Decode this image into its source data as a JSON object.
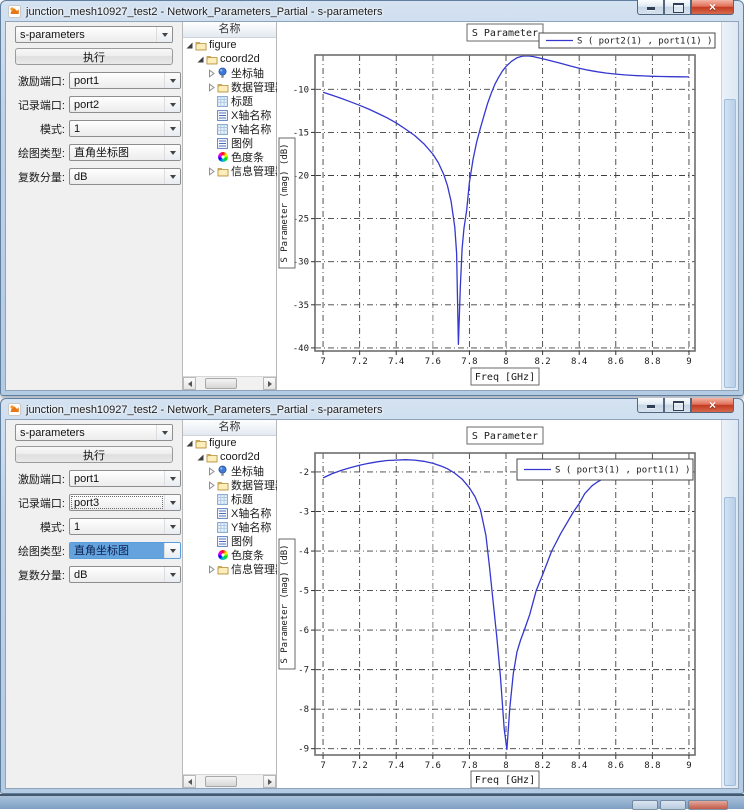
{
  "windows": [
    {
      "title": "junction_mesh10927_test2 - Network_Parameters_Partial - s-parameters",
      "panel": {
        "analysis_type": "s-parameters",
        "run_label": "执行",
        "fields": [
          {
            "label": "激励端口:",
            "value": "port1",
            "state": "normal"
          },
          {
            "label": "记录端口:",
            "value": "port2",
            "state": "normal"
          },
          {
            "label": "模式:",
            "value": "1",
            "state": "normal"
          },
          {
            "label": "绘图类型:",
            "value": "直角坐标图",
            "state": "normal"
          },
          {
            "label": "复数分量:",
            "value": "dB",
            "state": "normal"
          }
        ]
      },
      "tree": {
        "header": "名称",
        "items": [
          {
            "label": "figure",
            "icon": "folder",
            "expander": "expanded",
            "level": 0
          },
          {
            "label": "coord2d",
            "icon": "folder",
            "expander": "expanded",
            "level": 1
          },
          {
            "label": "坐标轴",
            "icon": "axes",
            "expander": "collapsed",
            "level": 2
          },
          {
            "label": "数据管理器",
            "icon": "folder",
            "expander": "collapsed",
            "level": 2
          },
          {
            "label": "标题",
            "icon": "table",
            "expander": "none",
            "level": 2
          },
          {
            "label": "X轴名称",
            "icon": "list",
            "expander": "none",
            "level": 2
          },
          {
            "label": "Y轴名称",
            "icon": "table",
            "expander": "none",
            "level": 2
          },
          {
            "label": "图例",
            "icon": "list",
            "expander": "none",
            "level": 2
          },
          {
            "label": "色度条",
            "icon": "colorwheel",
            "expander": "none",
            "level": 2
          },
          {
            "label": "信息管理器",
            "icon": "folder",
            "expander": "collapsed",
            "level": 2
          }
        ]
      }
    },
    {
      "title": "junction_mesh10927_test2 - Network_Parameters_Partial - s-parameters",
      "panel": {
        "analysis_type": "s-parameters",
        "run_label": "执行",
        "fields": [
          {
            "label": "激励端口:",
            "value": "port1",
            "state": "normal"
          },
          {
            "label": "记录端口:",
            "value": "port3",
            "state": "focused"
          },
          {
            "label": "模式:",
            "value": "1",
            "state": "normal"
          },
          {
            "label": "绘图类型:",
            "value": "直角坐标图",
            "state": "selected"
          },
          {
            "label": "复数分量:",
            "value": "dB",
            "state": "normal"
          }
        ]
      },
      "tree": {
        "header": "名称",
        "items": [
          {
            "label": "figure",
            "icon": "folder",
            "expander": "expanded",
            "level": 0
          },
          {
            "label": "coord2d",
            "icon": "folder",
            "expander": "expanded",
            "level": 1
          },
          {
            "label": "坐标轴",
            "icon": "axes",
            "expander": "collapsed",
            "level": 2
          },
          {
            "label": "数据管理器",
            "icon": "folder",
            "expander": "collapsed",
            "level": 2
          },
          {
            "label": "标题",
            "icon": "table",
            "expander": "none",
            "level": 2
          },
          {
            "label": "X轴名称",
            "icon": "list",
            "expander": "none",
            "level": 2
          },
          {
            "label": "Y轴名称",
            "icon": "table",
            "expander": "none",
            "level": 2
          },
          {
            "label": "图例",
            "icon": "list",
            "expander": "none",
            "level": 2
          },
          {
            "label": "色度条",
            "icon": "colorwheel",
            "expander": "none",
            "level": 2
          },
          {
            "label": "信息管理器",
            "icon": "folder",
            "expander": "collapsed",
            "level": 2
          }
        ]
      }
    }
  ],
  "chart_data": [
    {
      "type": "line",
      "title": "S Parameter",
      "xlabel": "Freq [GHz]",
      "ylabel": "S Parameter (mag) (dB)",
      "xlim": [
        6.956,
        9.033
      ],
      "ylim": [
        -40.36,
        -6.02
      ],
      "xticks": [
        7,
        7.2,
        7.4,
        7.6,
        7.8,
        8,
        8.2,
        8.4,
        8.6,
        8.8,
        9
      ],
      "yticks": [
        -10,
        -15,
        -20,
        -25,
        -30,
        -35,
        -40
      ],
      "grid": "dash-dot",
      "legend_position": "top-right-outside",
      "line_color": "#3537cf",
      "series": [
        {
          "name": "S ( port2(1) , port1(1) )",
          "points": [
            [
              7.0,
              -10.35
            ],
            [
              7.05,
              -10.7
            ],
            [
              7.1,
              -11.05
            ],
            [
              7.15,
              -11.45
            ],
            [
              7.2,
              -11.85
            ],
            [
              7.25,
              -12.3
            ],
            [
              7.3,
              -12.8
            ],
            [
              7.35,
              -13.3
            ],
            [
              7.4,
              -13.9
            ],
            [
              7.45,
              -14.6
            ],
            [
              7.5,
              -15.35
            ],
            [
              7.55,
              -16.3
            ],
            [
              7.6,
              -17.5
            ],
            [
              7.63,
              -18.5
            ],
            [
              7.66,
              -19.9
            ],
            [
              7.68,
              -21.2
            ],
            [
              7.7,
              -23.0
            ],
            [
              7.72,
              -26.0
            ],
            [
              7.73,
              -29.0
            ],
            [
              7.74,
              -39.6
            ],
            [
              7.75,
              -33.0
            ],
            [
              7.76,
              -28.5
            ],
            [
              7.77,
              -26.2
            ],
            [
              7.785,
              -24.0
            ],
            [
              7.8,
              -20.8
            ],
            [
              7.82,
              -18.1
            ],
            [
              7.84,
              -16.1
            ],
            [
              7.86,
              -14.5
            ],
            [
              7.88,
              -13.0
            ],
            [
              7.9,
              -11.6
            ],
            [
              7.92,
              -10.4
            ],
            [
              7.94,
              -9.4
            ],
            [
              7.96,
              -8.6
            ],
            [
              7.98,
              -7.9
            ],
            [
              8.0,
              -7.35
            ],
            [
              8.03,
              -6.75
            ],
            [
              8.06,
              -6.35
            ],
            [
              8.09,
              -6.15
            ],
            [
              8.12,
              -6.12
            ],
            [
              8.15,
              -6.2
            ],
            [
              8.2,
              -6.45
            ],
            [
              8.25,
              -6.72
            ],
            [
              8.3,
              -7.0
            ],
            [
              8.35,
              -7.28
            ],
            [
              8.4,
              -7.55
            ],
            [
              8.45,
              -7.78
            ],
            [
              8.5,
              -7.97
            ],
            [
              8.55,
              -8.12
            ],
            [
              8.6,
              -8.24
            ],
            [
              8.65,
              -8.33
            ],
            [
              8.7,
              -8.4
            ],
            [
              8.75,
              -8.45
            ],
            [
              8.8,
              -8.49
            ],
            [
              8.85,
              -8.52
            ],
            [
              8.9,
              -8.54
            ],
            [
              8.95,
              -8.55
            ],
            [
              9.0,
              -8.56
            ]
          ]
        }
      ]
    },
    {
      "type": "line",
      "title": "S Parameter",
      "xlabel": "Freq [GHz]",
      "ylabel": "S Parameter (mag) (dB)",
      "xlim": [
        6.956,
        9.033
      ],
      "ylim": [
        -9.16,
        -1.52
      ],
      "xticks": [
        7,
        7.2,
        7.4,
        7.6,
        7.8,
        8,
        8.2,
        8.4,
        8.6,
        8.8,
        9
      ],
      "yticks": [
        -2,
        -3,
        -4,
        -5,
        -6,
        -7,
        -8,
        -9
      ],
      "grid": "dash-dot",
      "legend_position": "inside-top-right",
      "line_color": "#3537cf",
      "series": [
        {
          "name": "S ( port3(1) , port1(1) )",
          "points": [
            [
              7.0,
              -2.15
            ],
            [
              7.05,
              -2.04
            ],
            [
              7.1,
              -1.96
            ],
            [
              7.15,
              -1.89
            ],
            [
              7.2,
              -1.83
            ],
            [
              7.25,
              -1.78
            ],
            [
              7.3,
              -1.74
            ],
            [
              7.35,
              -1.71
            ],
            [
              7.4,
              -1.7
            ],
            [
              7.45,
              -1.69
            ],
            [
              7.5,
              -1.7
            ],
            [
              7.55,
              -1.73
            ],
            [
              7.6,
              -1.78
            ],
            [
              7.65,
              -1.86
            ],
            [
              7.68,
              -1.92
            ],
            [
              7.72,
              -2.03
            ],
            [
              7.76,
              -2.18
            ],
            [
              7.8,
              -2.4
            ],
            [
              7.83,
              -2.62
            ],
            [
              7.86,
              -2.95
            ],
            [
              7.89,
              -3.6
            ],
            [
              7.91,
              -4.4
            ],
            [
              7.93,
              -5.3
            ],
            [
              7.95,
              -6.2
            ],
            [
              7.97,
              -7.2
            ],
            [
              7.99,
              -8.5
            ],
            [
              8.005,
              -9.02
            ],
            [
              8.02,
              -8.0
            ],
            [
              8.04,
              -7.1
            ],
            [
              8.06,
              -6.55
            ],
            [
              8.08,
              -6.25
            ],
            [
              8.1,
              -6.0
            ],
            [
              8.13,
              -5.6
            ],
            [
              8.165,
              -5.0
            ],
            [
              8.2,
              -4.6
            ],
            [
              8.25,
              -4.0
            ],
            [
              8.3,
              -3.55
            ],
            [
              8.37,
              -3.0
            ],
            [
              8.4,
              -2.8
            ],
            [
              8.43,
              -2.55
            ],
            [
              8.47,
              -2.35
            ],
            [
              8.5,
              -2.25
            ],
            [
              8.55,
              -2.12
            ],
            [
              8.6,
              -2.02
            ],
            [
              8.7,
              -1.92
            ],
            [
              8.8,
              -1.87
            ],
            [
              8.9,
              -1.84
            ],
            [
              9.0,
              -1.83
            ]
          ]
        }
      ]
    }
  ]
}
